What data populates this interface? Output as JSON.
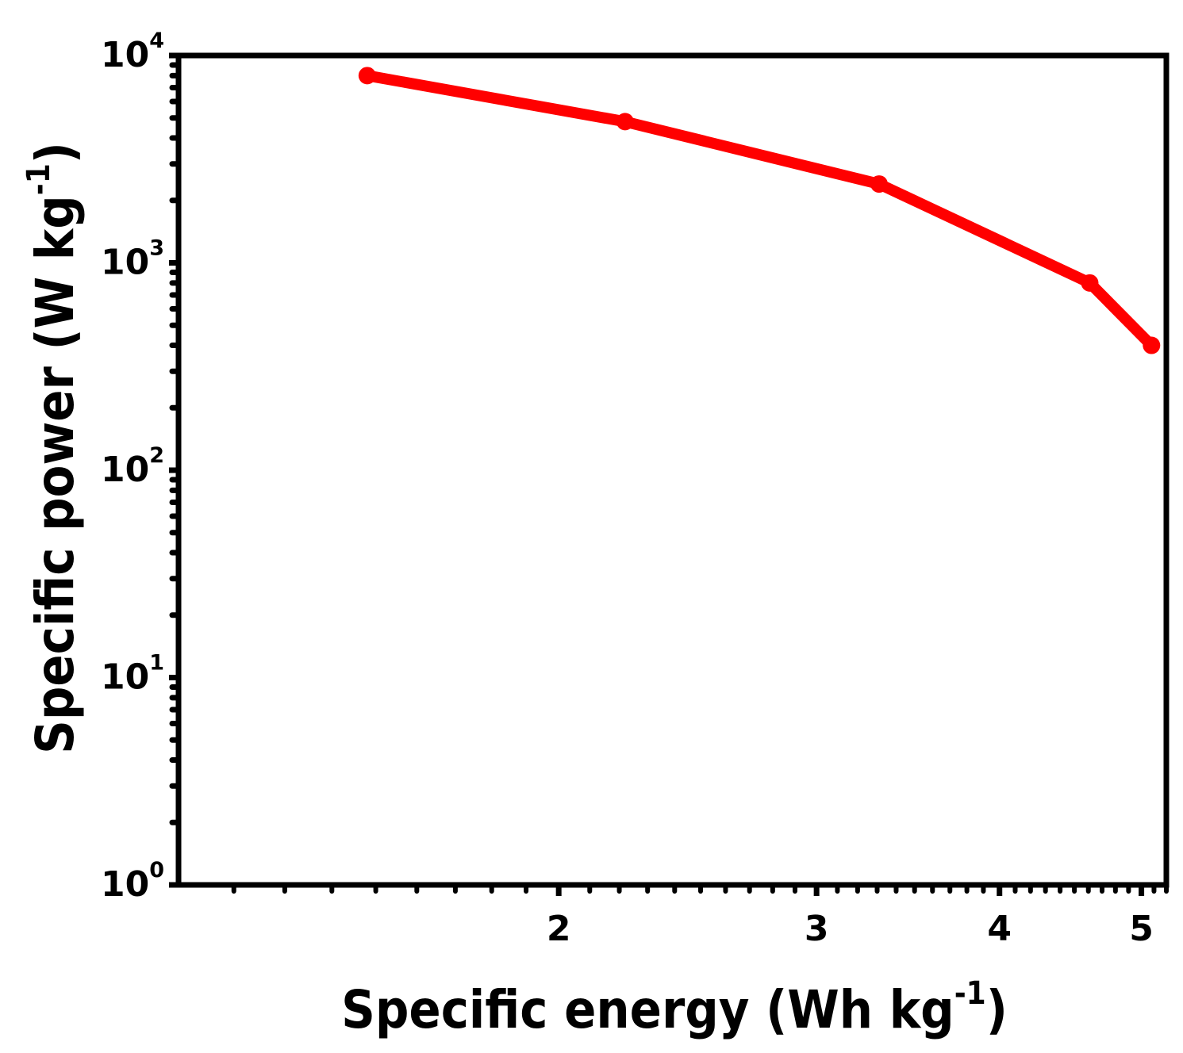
{
  "chart_data": {
    "type": "line",
    "title": "",
    "xlabel": {
      "main": "Specific energy (Wh kg",
      "sup": "-1",
      "close": ")"
    },
    "ylabel": {
      "main": "Specific power (W kg",
      "sup": "-1",
      "close": ")"
    },
    "x_scale": "log",
    "y_scale": "log",
    "xlim": [
      1.1,
      5.2
    ],
    "ylim": [
      1,
      10000
    ],
    "x_ticks": [
      {
        "value": 2,
        "label": "2"
      },
      {
        "value": 3,
        "label": "3"
      },
      {
        "value": 4,
        "label": "4"
      },
      {
        "value": 5,
        "label": "5"
      }
    ],
    "y_ticks": [
      {
        "value": 1,
        "base": "10",
        "exp": "0"
      },
      {
        "value": 10,
        "base": "10",
        "exp": "1"
      },
      {
        "value": 100,
        "base": "10",
        "exp": "2"
      },
      {
        "value": 1000,
        "base": "10",
        "exp": "3"
      },
      {
        "value": 10000,
        "base": "10",
        "exp": "4"
      }
    ],
    "grid": false,
    "legend": "none",
    "series": [
      {
        "color": "#ff0000",
        "marker": "circle",
        "x": [
          1.48,
          2.22,
          3.31,
          4.61,
          5.08
        ],
        "y": [
          8000,
          4800,
          2400,
          800,
          400
        ]
      }
    ]
  }
}
